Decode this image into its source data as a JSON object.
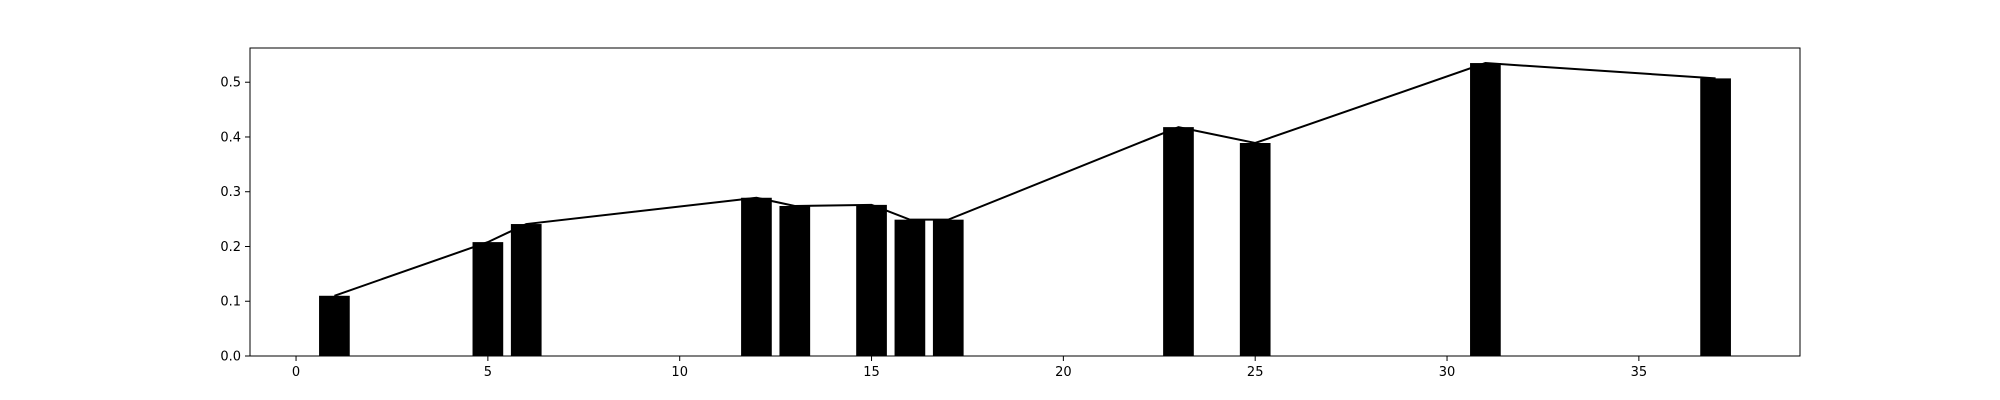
{
  "chart_data": {
    "type": "bar",
    "title": "",
    "xlabel": "",
    "ylabel": "",
    "xlim": [
      -1.2,
      39.2
    ],
    "ylim": [
      0,
      0.5625
    ],
    "grid": false,
    "bar_width": 0.8,
    "bar_color": "#000000",
    "line_color": "#000000",
    "x": [
      1,
      5,
      6,
      12,
      13,
      15,
      16,
      17,
      23,
      25,
      31,
      37
    ],
    "values": [
      0.11,
      0.208,
      0.241,
      0.289,
      0.274,
      0.276,
      0.249,
      0.249,
      0.418,
      0.389,
      0.535,
      0.507
    ],
    "xticks": [
      0,
      5,
      10,
      15,
      20,
      25,
      30,
      35
    ],
    "xtick_labels": [
      "0",
      "5",
      "10",
      "15",
      "20",
      "25",
      "30",
      "35"
    ],
    "yticks": [
      0.0,
      0.1,
      0.2,
      0.3,
      0.4,
      0.5
    ],
    "ytick_labels": [
      "0.0",
      "0.1",
      "0.2",
      "0.3",
      "0.4",
      "0.5"
    ]
  }
}
